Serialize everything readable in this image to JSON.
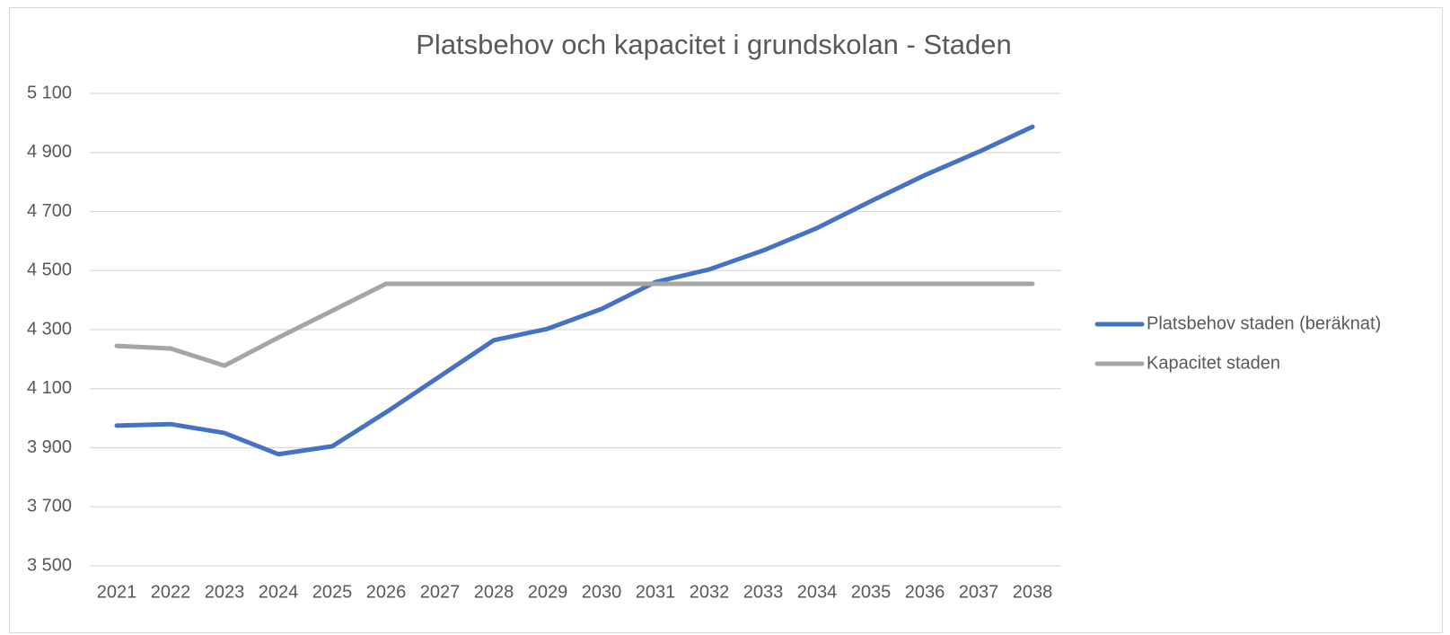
{
  "chart_data": {
    "type": "line",
    "title": "Platsbehov och kapacitet i grundskolan - Staden",
    "categories": [
      "2021",
      "2022",
      "2023",
      "2024",
      "2025",
      "2026",
      "2027",
      "2028",
      "2029",
      "2030",
      "2031",
      "2032",
      "2033",
      "2034",
      "2035",
      "2036",
      "2037",
      "2038"
    ],
    "series": [
      {
        "name": "Platsbehov staden (beräknat)",
        "color": "#4472c4",
        "values": [
          3975,
          3980,
          3950,
          3878,
          3905,
          4020,
          4142,
          4264,
          4303,
          4370,
          4461,
          4504,
          4568,
          4644,
          4735,
          4823,
          4902,
          4987
        ]
      },
      {
        "name": "Kapacitet staden",
        "color": "#a5a5a5",
        "values": [
          4245,
          4236,
          4178,
          4273,
          4364,
          4455,
          4455,
          4455,
          4455,
          4455,
          4455,
          4455,
          4455,
          4455,
          4455,
          4455,
          4455,
          4455
        ]
      }
    ],
    "ylim": [
      3500,
      5100
    ],
    "yticks": [
      {
        "value": 3500,
        "label": "3 500"
      },
      {
        "value": 3700,
        "label": "3 700"
      },
      {
        "value": 3900,
        "label": "3 900"
      },
      {
        "value": 4100,
        "label": "4 100"
      },
      {
        "value": 4300,
        "label": "4 300"
      },
      {
        "value": 4500,
        "label": "4 500"
      },
      {
        "value": 4700,
        "label": "4 700"
      },
      {
        "value": 4900,
        "label": "4 900"
      },
      {
        "value": 5100,
        "label": "5 100"
      }
    ],
    "grid": true,
    "legend": "right"
  }
}
